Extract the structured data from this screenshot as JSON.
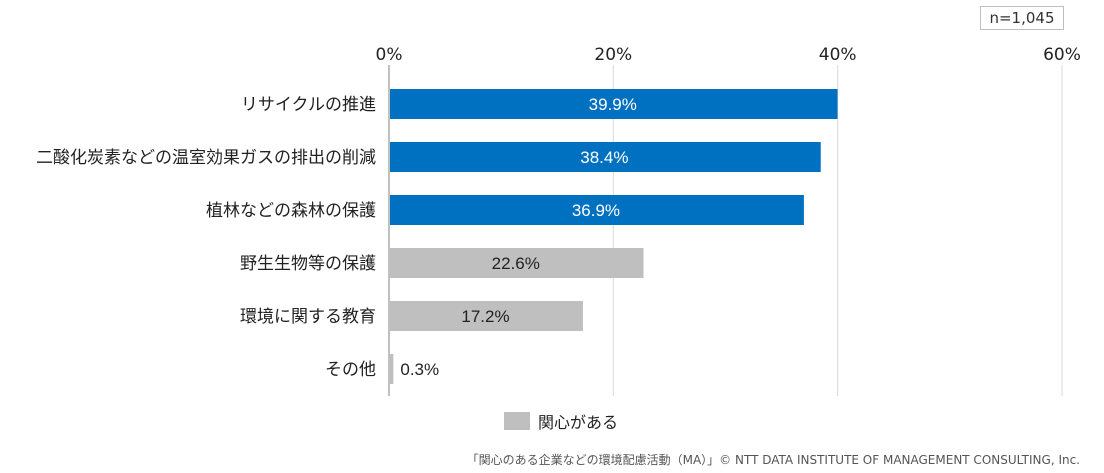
{
  "sample_size": "n=1,045",
  "legend_label": "関心がある",
  "footer": "「関心のある企業などの環境配慮活動（MA）」© NTT DATA INSTITUTE OF MANAGEMENT CONSULTING, Inc.",
  "colors": {
    "highlight": "#0070c0",
    "normal": "#bfbfbf",
    "grid": "#d9d9d9",
    "axis": "#808080"
  },
  "chart_data": {
    "type": "bar",
    "orientation": "horizontal",
    "categories": [
      "リサイクルの推進",
      "二酸化炭素などの温室効果ガスの排出の削減",
      "植林などの森林の保護",
      "野生生物等の保護",
      "環境に関する教育",
      "その他"
    ],
    "values": [
      39.9,
      38.4,
      36.9,
      22.6,
      17.2,
      0.3
    ],
    "data_labels": [
      "39.9%",
      "38.4%",
      "36.9%",
      "22.6%",
      "17.2%",
      "0.3%"
    ],
    "highlighted": [
      true,
      true,
      true,
      false,
      false,
      false
    ],
    "series": [
      {
        "name": "関心がある",
        "values": [
          39.9,
          38.4,
          36.9,
          22.6,
          17.2,
          0.3
        ]
      }
    ],
    "xlim": [
      0,
      60
    ],
    "xticks": [
      0,
      20,
      40,
      60
    ],
    "xtick_labels": [
      "0%",
      "20%",
      "40%",
      "60%"
    ],
    "axis_position": "top",
    "grid": true,
    "legend_position": "bottom"
  }
}
